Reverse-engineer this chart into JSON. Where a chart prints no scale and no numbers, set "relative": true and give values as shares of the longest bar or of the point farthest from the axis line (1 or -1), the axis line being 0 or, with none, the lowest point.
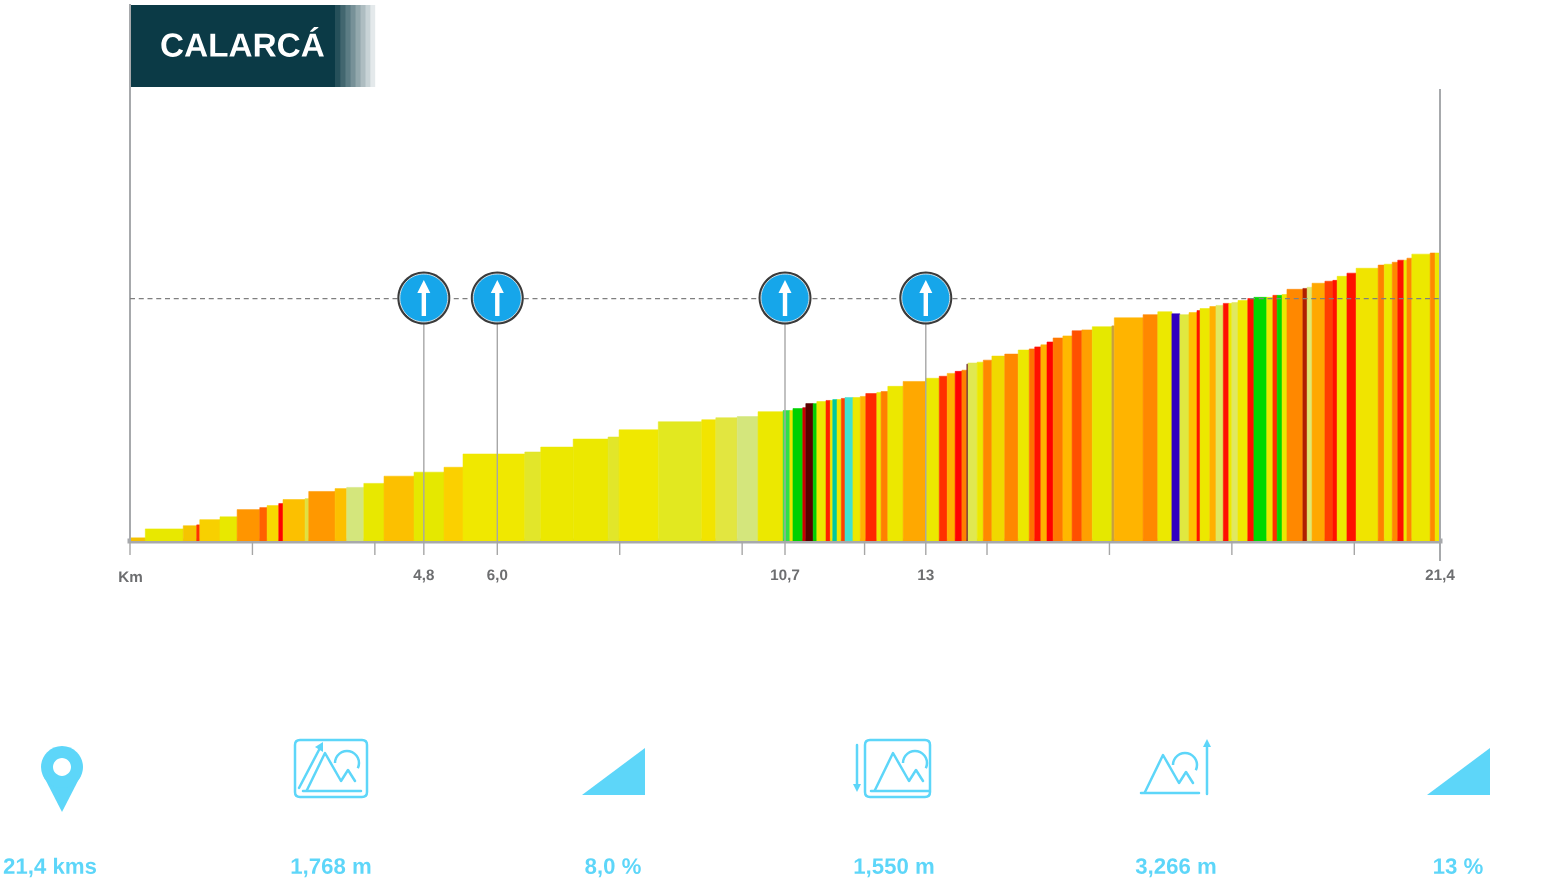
{
  "chart_data": {
    "type": "bar",
    "title": "CALARCÁ",
    "xlabel": "Km",
    "relative": true,
    "x": [
      0.125,
      0.56,
      0.98,
      1.115,
      1.305,
      1.61,
      1.935,
      2.18,
      2.335,
      2.465,
      2.68,
      2.89,
      3.135,
      3.445,
      3.68,
      3.985,
      4.395,
      4.885,
      5.285,
      5.945,
      6.58,
      6.975,
      7.525,
      7.9,
      8.31,
      8.985,
      9.455,
      9.745,
      10.09,
      10.465,
      10.725,
      10.805,
      10.91,
      11.015,
      11.1,
      11.19,
      11.295,
      11.405,
      11.46,
      11.515,
      11.585,
      11.65,
      11.745,
      11.87,
      11.975,
      12.11,
      12.235,
      12.325,
      12.505,
      12.815,
      13.11,
      13.285,
      13.415,
      13.535,
      13.63,
      13.68,
      13.765,
      13.89,
      14.01,
      14.185,
      14.4,
      14.6,
      14.735,
      14.83,
      14.93,
      15.03,
      15.16,
      15.315,
      15.47,
      15.635,
      15.88,
      16.06,
      16.315,
      16.67,
      16.905,
      17.085,
      17.225,
      17.365,
      17.455,
      17.56,
      17.69,
      17.8,
      17.905,
      17.975,
      18.05,
      18.18,
      18.31,
      18.465,
      18.62,
      18.705,
      18.78,
      18.86,
      19.03,
      19.195,
      19.27,
      19.415,
      19.585,
      19.685,
      19.8,
      19.955,
      20.21,
      20.44,
      20.555,
      20.665,
      20.76,
      20.835,
      20.9,
      21.09,
      21.28,
      21.36
    ],
    "values": [
      0.011,
      0.042,
      0.053,
      0.056,
      0.074,
      0.084,
      0.109,
      0.116,
      0.123,
      0.13,
      0.144,
      0.147,
      0.172,
      0.182,
      0.186,
      0.2,
      0.225,
      0.239,
      0.256,
      0.302,
      0.309,
      0.326,
      0.354,
      0.361,
      0.386,
      0.414,
      0.421,
      0.428,
      0.432,
      0.449,
      0.453,
      0.453,
      0.46,
      0.463,
      0.477,
      0.477,
      0.484,
      0.488,
      0.488,
      0.491,
      0.491,
      0.495,
      0.498,
      0.498,
      0.502,
      0.512,
      0.516,
      0.519,
      0.537,
      0.554,
      0.565,
      0.572,
      0.582,
      0.589,
      0.593,
      0.614,
      0.618,
      0.621,
      0.628,
      0.642,
      0.649,
      0.663,
      0.667,
      0.674,
      0.681,
      0.691,
      0.705,
      0.712,
      0.73,
      0.733,
      0.744,
      0.747,
      0.775,
      0.786,
      0.796,
      0.789,
      0.786,
      0.793,
      0.8,
      0.807,
      0.814,
      0.818,
      0.825,
      0.825,
      0.828,
      0.835,
      0.842,
      0.846,
      0.846,
      0.853,
      0.853,
      0.856,
      0.874,
      0.877,
      0.881,
      0.895,
      0.902,
      0.905,
      0.919,
      0.93,
      0.947,
      0.958,
      0.961,
      0.968,
      0.975,
      0.975,
      0.982,
      0.996,
      1.0,
      1.0
    ],
    "colors": [
      "#f5c000",
      "#e8e800",
      "#f5c400",
      "#ff3000",
      "#f8d000",
      "#e8e800",
      "#ff9500",
      "#ff6000",
      "#f8d800",
      "#ff0000",
      "#fcc000",
      "#e0e040",
      "#ff9800",
      "#fcc000",
      "#d4e67c",
      "#e8e800",
      "#fcc000",
      "#e5e800",
      "#fbd000",
      "#f0e800",
      "#e2e62a",
      "#ece800",
      "#ece800",
      "#e2e62a",
      "#f0e800",
      "#e2e820",
      "#f2e400",
      "#e2e640",
      "#d4e67c",
      "#ece800",
      "#2ee04a",
      "#ece800",
      "#00d000",
      "#cc0000",
      "#5a0000",
      "#00d000",
      "#ece800",
      "#ff2000",
      "#ece800",
      "#00c8a0",
      "#ece800",
      "#ff4000",
      "#40e0d0",
      "#ece800",
      "#ffb000",
      "#ff2800",
      "#ece800",
      "#ff8000",
      "#ece800",
      "#ffa800",
      "#ece800",
      "#ff3000",
      "#ffb000",
      "#ff0000",
      "#ff8000",
      "#6a2030",
      "#e0e850",
      "#ece800",
      "#ff8800",
      "#f0d800",
      "#ff8800",
      "#ece800",
      "#ff7000",
      "#ff1000",
      "#ffb000",
      "#ff0000",
      "#ff7800",
      "#ffb800",
      "#ff5000",
      "#ffa000",
      "#e5e800",
      "#c8a040",
      "#ffb400",
      "#ff8800",
      "#ece800",
      "#3000c0",
      "#e0e840",
      "#ffc000",
      "#ff1000",
      "#ece800",
      "#ffb000",
      "#e0e860",
      "#ff1000",
      "#ece800",
      "#e0e860",
      "#f0e800",
      "#ff1000",
      "#00d800",
      "#ece800",
      "#ff3000",
      "#00d800",
      "#ece800",
      "#ff8800",
      "#b02000",
      "#e0e870",
      "#ffa800",
      "#ff4000",
      "#ff1000",
      "#ece800",
      "#ff1000",
      "#f0e400",
      "#ff8000",
      "#ece800",
      "#ff8800",
      "#ff1000",
      "#ece800",
      "#ff8800",
      "#ece800",
      "#ff8800",
      "#ece800"
    ],
    "xlim": [
      0,
      21.4
    ],
    "xticks": [
      {
        "value": 0,
        "label": null
      },
      {
        "value": 2,
        "label": null
      },
      {
        "value": 4,
        "label": null
      },
      {
        "value": 4.8,
        "label": "4,8"
      },
      {
        "value": 6,
        "label": "6,0"
      },
      {
        "value": 8,
        "label": null
      },
      {
        "value": 10,
        "label": null
      },
      {
        "value": 10.7,
        "label": "10,7"
      },
      {
        "value": 12,
        "label": null
      },
      13,
      {
        "value": 14,
        "label": null
      },
      {
        "value": 16,
        "label": null
      },
      {
        "value": 18,
        "label": null
      },
      {
        "value": 20,
        "label": null
      },
      {
        "value": 21.4,
        "label": "21,4"
      }
    ],
    "ref_lines": [
      {
        "axis": "y",
        "value": 0.842,
        "color": "#7f7f7f",
        "line_style": "dashed"
      },
      {
        "axis": "x",
        "value": 4.8,
        "color": "#a6a6a6"
      },
      {
        "axis": "x",
        "value": 6,
        "color": "#a6a6a6"
      },
      {
        "axis": "x",
        "value": 10.7,
        "color": "#a6a6a6"
      },
      {
        "axis": "x",
        "value": 13,
        "color": "#a6a6a6"
      }
    ],
    "annotations": [
      "21,4 kms",
      "1,768 m",
      "8,0 %",
      "1,550 m",
      "3,266 m",
      "13 %"
    ]
  }
}
